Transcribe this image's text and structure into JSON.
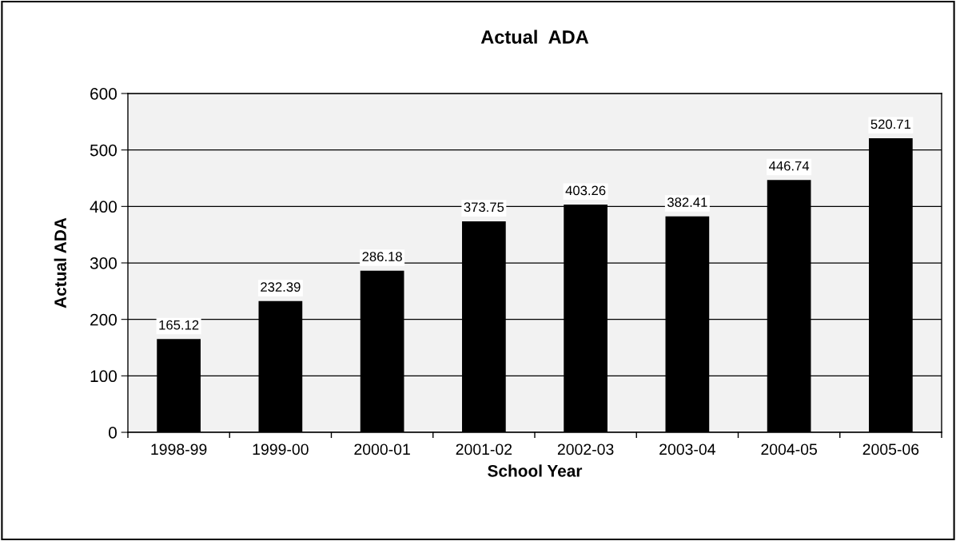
{
  "chart_data": {
    "type": "bar",
    "title": "Actual  ADA",
    "xlabel": "School Year",
    "ylabel": "Actual ADA",
    "categories": [
      "1998-99",
      "1999-00",
      "2000-01",
      "2001-02",
      "2002-03",
      "2003-04",
      "2004-05",
      "2005-06"
    ],
    "values": [
      165.12,
      232.39,
      286.18,
      373.75,
      403.26,
      382.41,
      446.74,
      520.71
    ],
    "color": "#000000",
    "ylim": [
      0,
      600
    ],
    "yticks": [
      0,
      100,
      200,
      300,
      400,
      500,
      600
    ],
    "grid": "y",
    "data_labels": true
  }
}
